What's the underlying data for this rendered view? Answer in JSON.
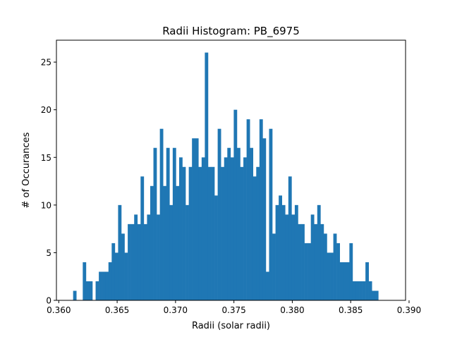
{
  "chart_data": {
    "type": "bar",
    "title": "Radii Histogram: PB_6975",
    "xlabel": "Radii (solar radii)",
    "ylabel": "# of Occurances",
    "xlim": [
      0.3598,
      0.3897
    ],
    "ylim": [
      0,
      27.3
    ],
    "x_ticks": [
      0.36,
      0.365,
      0.37,
      0.375,
      0.38,
      0.385,
      0.39
    ],
    "x_tick_labels": [
      "0.360",
      "0.365",
      "0.370",
      "0.375",
      "0.380",
      "0.385",
      "0.390"
    ],
    "y_ticks": [
      0,
      5,
      10,
      15,
      20,
      25
    ],
    "y_tick_labels": [
      "0",
      "5",
      "10",
      "15",
      "20",
      "25"
    ],
    "bins": {
      "start": 0.36123,
      "end": 0.38874,
      "count": 100
    },
    "values": [
      1,
      0,
      0,
      4,
      2,
      2,
      0,
      2,
      3,
      3,
      3,
      4,
      6,
      5,
      10,
      7,
      5,
      8,
      8,
      9,
      8,
      13,
      8,
      9,
      12,
      16,
      9,
      18,
      12,
      16,
      10,
      16,
      12,
      15,
      14,
      10,
      14,
      17,
      17,
      14,
      15,
      26,
      14,
      14,
      11,
      18,
      14,
      15,
      16,
      15,
      20,
      16,
      14,
      15,
      19,
      16,
      13,
      14,
      19,
      17,
      3,
      18,
      7,
      10,
      11,
      10,
      9,
      13,
      9,
      10,
      8,
      8,
      6,
      6,
      9,
      8,
      10,
      8,
      7,
      5,
      5,
      7,
      6,
      4,
      4,
      4,
      6,
      2,
      2,
      2,
      2,
      4,
      2,
      1,
      1,
      0,
      0,
      0,
      0,
      0
    ],
    "bar_color": "#1f77b4",
    "grid": false,
    "legend": "none"
  }
}
